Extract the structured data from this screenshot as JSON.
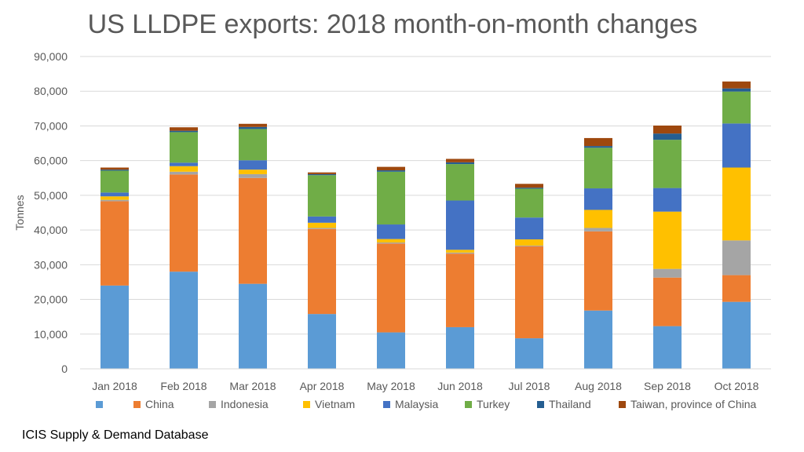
{
  "chart_data": {
    "type": "bar",
    "stacked": true,
    "title": "US LLDPE exports: 2018 month-on-month changes",
    "ylabel": "Tonnes",
    "xlabel": "",
    "ylim": [
      0,
      90000
    ],
    "yticks": [
      "0",
      "10,000",
      "20,000",
      "30,000",
      "40,000",
      "50,000",
      "60,000",
      "70,000",
      "80,000",
      "90,000"
    ],
    "grid": true,
    "legend_position": "bottom",
    "categories": [
      "Jan 2018",
      "Feb 2018",
      "Mar 2018",
      "Apr 2018",
      "May 2018",
      "Jun 2018",
      "Jul 2018",
      "Aug 2018",
      "Sep 2018",
      "Oct 2018"
    ],
    "series": [
      {
        "name": "",
        "color": "#5B9BD5",
        "values": [
          24000,
          28000,
          24500,
          15800,
          10500,
          12000,
          8800,
          16800,
          12300,
          19300
        ]
      },
      {
        "name": "China",
        "color": "#ED7D31",
        "values": [
          24300,
          28000,
          30500,
          24500,
          25600,
          21200,
          26500,
          22800,
          14000,
          7700
        ]
      },
      {
        "name": "Indonesia",
        "color": "#A5A5A5",
        "values": [
          400,
          800,
          1100,
          300,
          300,
          300,
          200,
          1000,
          2500,
          10000
        ]
      },
      {
        "name": "Vietnam",
        "color": "#FFC000",
        "values": [
          1000,
          1600,
          1300,
          1500,
          1000,
          800,
          1800,
          5200,
          16500,
          21000
        ]
      },
      {
        "name": "Malaysia",
        "color": "#4472C4",
        "values": [
          1100,
          1000,
          2700,
          1800,
          4200,
          14200,
          6300,
          6200,
          6800,
          12700
        ]
      },
      {
        "name": "Turkey",
        "color": "#70AD47",
        "values": [
          6300,
          8800,
          9000,
          11900,
          15200,
          10500,
          8300,
          11700,
          13900,
          9200
        ]
      },
      {
        "name": "Thailand",
        "color": "#255E91",
        "values": [
          300,
          400,
          600,
          300,
          400,
          500,
          300,
          500,
          1800,
          900
        ]
      },
      {
        "name": "Taiwan, province of China",
        "color": "#9E480E",
        "values": [
          600,
          1000,
          900,
          500,
          1000,
          1000,
          1100,
          2300,
          2300,
          2000
        ]
      }
    ]
  },
  "source": "ICIS Supply & Demand Database",
  "colors": {
    "gridline": "#D9D9D9",
    "axis_text": "#595959",
    "title_text": "#595959"
  }
}
